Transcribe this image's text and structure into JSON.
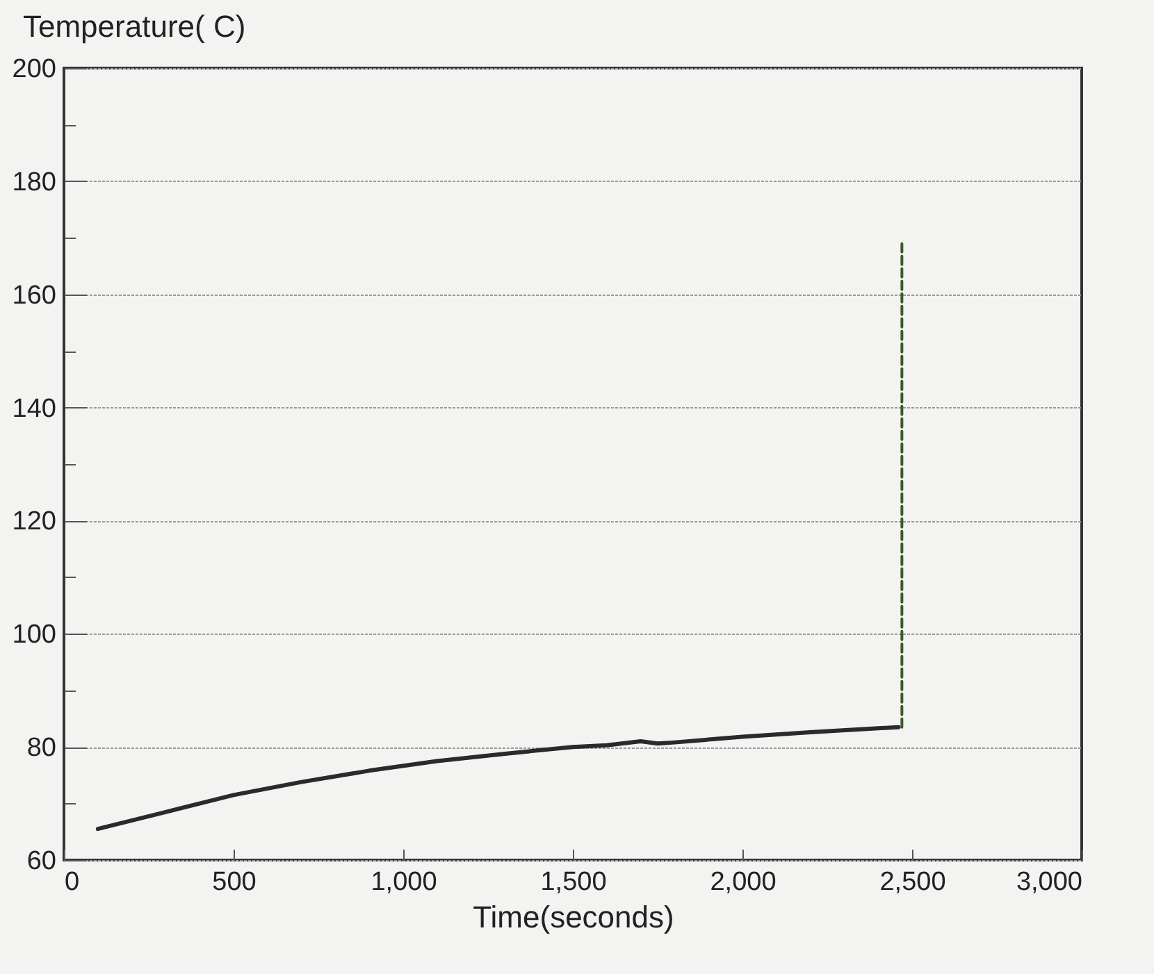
{
  "chart_data": {
    "type": "line",
    "xlabel": "Time(seconds)",
    "ylabel": "Temperature( C)",
    "xlim": [
      0,
      3000
    ],
    "xticks": [
      0,
      500,
      {
        "value": 1000,
        "label": "1,000"
      },
      {
        "value": 1500,
        "label": "1,500"
      },
      {
        "value": 2000,
        "label": "2,000"
      },
      {
        "value": 2500,
        "label": "2,500"
      },
      {
        "value": 3000,
        "label": "3,000"
      }
    ],
    "ylim": [
      60,
      200
    ],
    "yticks": [
      60,
      {
        "value": 70,
        "label": null
      },
      80,
      {
        "value": 90,
        "label": null
      },
      100,
      {
        "value": 110,
        "label": null
      },
      120,
      {
        "value": 130,
        "label": null
      },
      140,
      {
        "value": 150,
        "label": null
      },
      160,
      {
        "value": 170,
        "label": null
      },
      180,
      {
        "value": 190,
        "label": null
      },
      200
    ],
    "grid": "y",
    "series": [
      {
        "color": "#2a2a2a",
        "line_style": "solid",
        "x": [
          100,
          300,
          500,
          700,
          900,
          1100,
          1300,
          1500,
          1600,
          1700,
          1750,
          1800,
          2000,
          2200,
          2400,
          2460
        ],
        "values": [
          65.5,
          68.5,
          71.5,
          73.8,
          75.8,
          77.5,
          78.8,
          80,
          80.3,
          81,
          80.6,
          80.8,
          81.8,
          82.6,
          83.3,
          83.5
        ]
      },
      {
        "color": "#3a5a2a",
        "line_style": "dashed",
        "x": [
          2470,
          2470
        ],
        "values": [
          83.5,
          169
        ]
      }
    ]
  }
}
